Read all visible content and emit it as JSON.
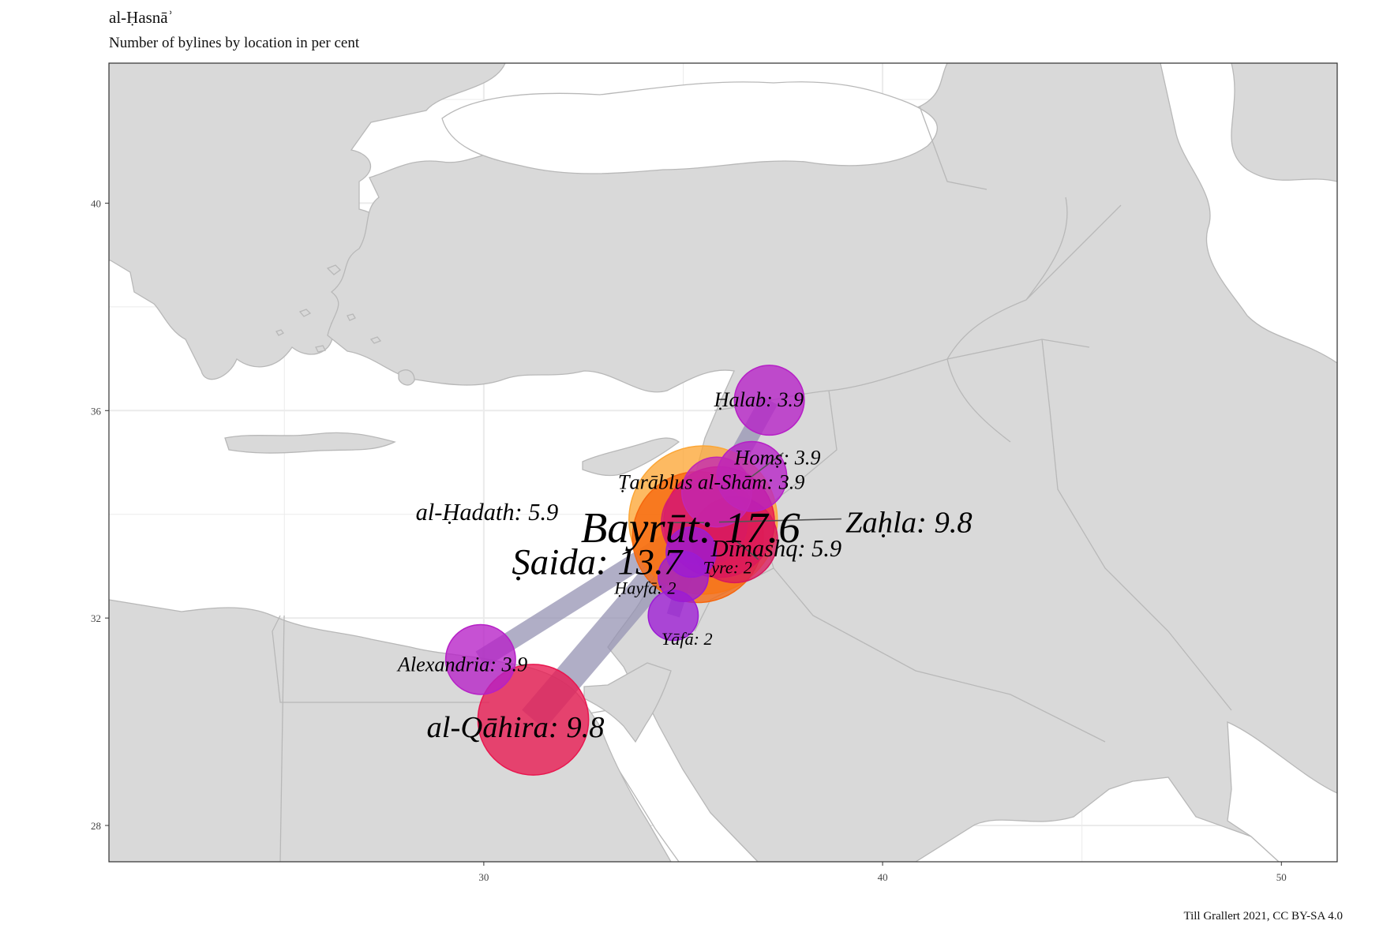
{
  "title": "al-Ḥasnāʾ",
  "subtitle": "Number of bylines by location in per cent",
  "credit": "Till Grallert 2021, CC BY-SA 4.0",
  "colors": {
    "background": "#ffffff",
    "land": "#d9d9d9",
    "border": "#b8b8b8",
    "grid": "#ebebeb",
    "link": "#9693b3"
  },
  "chart_data": {
    "type": "scatter",
    "xlim": [
      20.6,
      51.4
    ],
    "ylim": [
      27.3,
      42.7
    ],
    "x_ticks": [
      30,
      40,
      50
    ],
    "y_ticks": [
      28,
      32,
      36,
      40
    ],
    "grid": true,
    "locations": [
      {
        "name": "Ḥalab",
        "lon": 37.16,
        "lat": 36.2,
        "value": 3.9,
        "label": "Ḥalab: 3.9",
        "color": "#b620c6"
      },
      {
        "name": "Homṣ",
        "lon": 36.72,
        "lat": 34.73,
        "value": 3.9,
        "label": "Homṣ: 3.9",
        "color": "#b620c6"
      },
      {
        "name": "Ṭarāblus al-Shām",
        "lon": 35.84,
        "lat": 34.43,
        "value": 3.9,
        "label": "Ṭarāblus al-Shām: 3.9",
        "color": "#c227b4"
      },
      {
        "name": "al-Ḥadath",
        "lon": 35.53,
        "lat": 33.84,
        "value": 5.9,
        "label": "al-Ḥadath: 5.9",
        "color": "#d5206f"
      },
      {
        "name": "Bayrūt",
        "lon": 35.5,
        "lat": 33.89,
        "value": 17.6,
        "label": "Bayrūt: 17.6",
        "color": "#fca636"
      },
      {
        "name": "Zaḥla",
        "lon": 35.9,
        "lat": 33.85,
        "value": 9.8,
        "label": "Zaḥla: 9.8",
        "color": "#e8174f"
      },
      {
        "name": "Ṣaida",
        "lon": 35.37,
        "lat": 33.56,
        "value": 13.7,
        "label": "Ṣaida: 13.7",
        "color": "#f6660d"
      },
      {
        "name": "Dimashq",
        "lon": 36.29,
        "lat": 33.51,
        "value": 5.9,
        "label": "Dimashq: 5.9",
        "color": "#d8185e"
      },
      {
        "name": "Tyre",
        "lon": 35.2,
        "lat": 33.27,
        "value": 2,
        "label": "Tyre: 2",
        "color": "#9c1bd4"
      },
      {
        "name": "Ḥayfā",
        "lon": 35.0,
        "lat": 32.8,
        "value": 2,
        "label": "Ḥayfā: 2",
        "color": "#9c1bd4"
      },
      {
        "name": "Yāfā",
        "lon": 34.75,
        "lat": 32.05,
        "value": 2,
        "label": "Yāfā: 2",
        "color": "#9c1bd4"
      },
      {
        "name": "Alexandria",
        "lon": 29.92,
        "lat": 31.2,
        "value": 3.9,
        "label": "Alexandria: 3.9",
        "color": "#b620c6"
      },
      {
        "name": "al-Qāhira",
        "lon": 31.24,
        "lat": 30.04,
        "value": 9.8,
        "label": "al-Qāhira: 9.8",
        "color": "#e8174f"
      }
    ],
    "links": [
      {
        "from": "Bayrūt",
        "to": "al-Qāhira"
      },
      {
        "from": "Bayrūt",
        "to": "Alexandria"
      },
      {
        "from": "Bayrūt",
        "to": "Ḥalab"
      },
      {
        "from": "Bayrūt",
        "to": "Homṣ"
      },
      {
        "from": "Bayrūt",
        "to": "Dimashq"
      },
      {
        "from": "Bayrūt",
        "to": "Yāfā"
      },
      {
        "from": "Bayrūt",
        "to": "Ḥayfā"
      }
    ]
  }
}
